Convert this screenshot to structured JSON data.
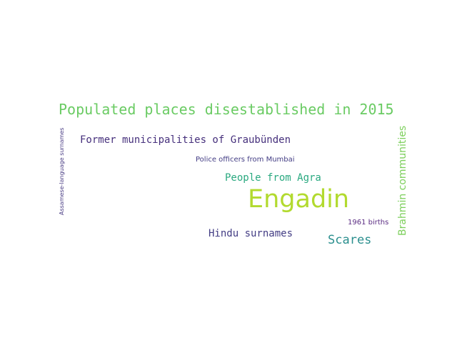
{
  "words": [
    {
      "text": "Populated places disestablished in 2015",
      "color": "#6acb63"
    },
    {
      "text": "Former municipalities of Graubünden",
      "color": "#46307c"
    },
    {
      "text": "Police officers from Mumbai",
      "color": "#433d84"
    },
    {
      "text": "People from Agra",
      "color": "#2aa980"
    },
    {
      "text": "Engadin",
      "color": "#b2da2f"
    },
    {
      "text": "1961 births",
      "color": "#5b2d83"
    },
    {
      "text": "Hindu surnames",
      "color": "#433d84"
    },
    {
      "text": "Scares",
      "color": "#2b8f8e"
    },
    {
      "text": "Assamese-language surnames",
      "color": "#4a3d84"
    },
    {
      "text": "Brahmin communities",
      "color": "#7ccf5b"
    }
  ]
}
